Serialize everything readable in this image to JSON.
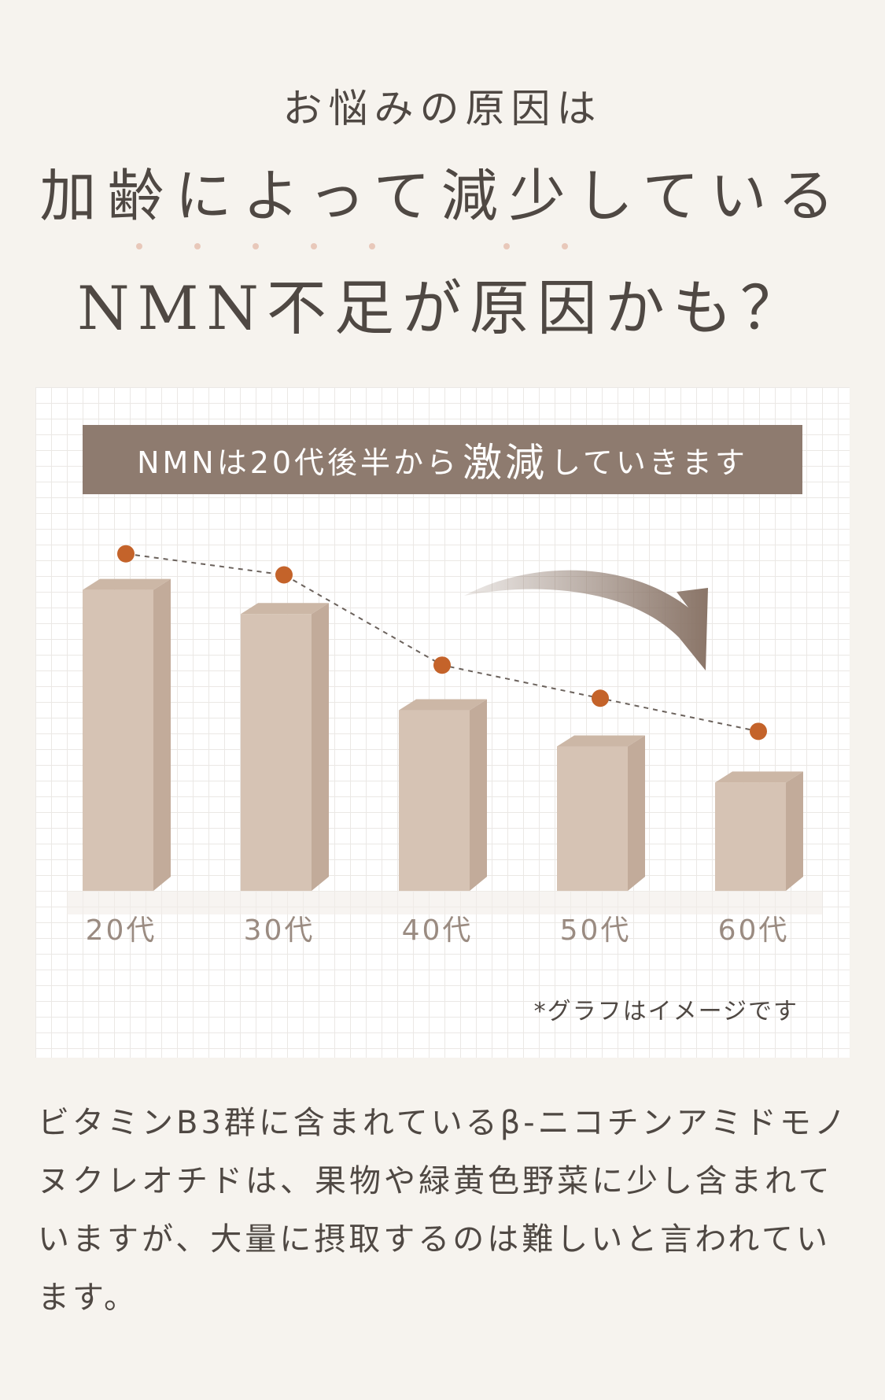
{
  "header": {
    "sub_heading": "お悩みの原因は",
    "headline_1": "加齢によって減少している",
    "headline_2": "NMN不足が原因かも？"
  },
  "banner": {
    "pre": "NMNは20代後半から",
    "emphasis": "激減",
    "post": "していきます"
  },
  "chart_data": {
    "type": "bar",
    "categories": [
      "20代",
      "30代",
      "40代",
      "50代",
      "60代"
    ],
    "values": [
      100,
      92,
      60,
      48,
      36
    ],
    "trend_line": [
      112,
      105,
      75,
      64,
      53
    ],
    "ylim": [
      0,
      125
    ],
    "title": "",
    "xlabel": "",
    "ylabel": "",
    "bar_color": "#d6c3b4",
    "bar_side_color": "#c2ab9a",
    "bar_top_color": "#ccb7a6",
    "marker_color": "#c4632a",
    "arrow_color": "#8a7568"
  },
  "note": "*グラフはイメージです",
  "body": {
    "text": "ビタミンB3群に含まれているβ-ニコチンアミドモノヌクレオチドは、果物や緑黄色野菜に少し含まれていますが、大量に摂取するのは難しいと言われています。"
  }
}
